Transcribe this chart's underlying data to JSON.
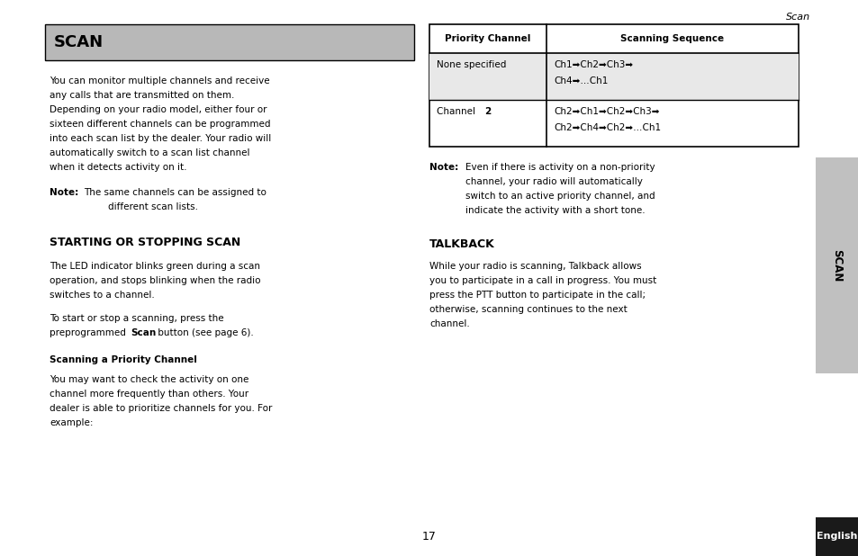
{
  "page_bg": "#ffffff",
  "sidebar_bg": "#c0c0c0",
  "english_bar_bg": "#1a1a1a",
  "header_text": "Scan",
  "page_number": "17",
  "scan_title": "SCAN",
  "scan_title_bg": "#b8b8b8",
  "table_header_col1": "Priority Channel",
  "table_header_col2": "Scanning Sequence",
  "table_row1_col1": "None specified",
  "table_row1_col2_line1": "Ch1➡Ch2➡Ch3➡",
  "table_row1_col2_line2": "Ch4➡…Ch1",
  "table_row2_col2_line1": "Ch2➡Ch1➡Ch2➡Ch3➡",
  "table_row2_col2_line2": "Ch2➡Ch4➡Ch2➡…Ch1",
  "section2_title": "STARTING OR STOPPING SCAN",
  "section2_sub": "Scanning a Priority Channel",
  "talkback_title": "TALKBACK",
  "font_size_body": 7.5,
  "font_size_title": 13,
  "font_size_section": 9,
  "font_size_table": 7.5,
  "font_size_header": 7.5
}
